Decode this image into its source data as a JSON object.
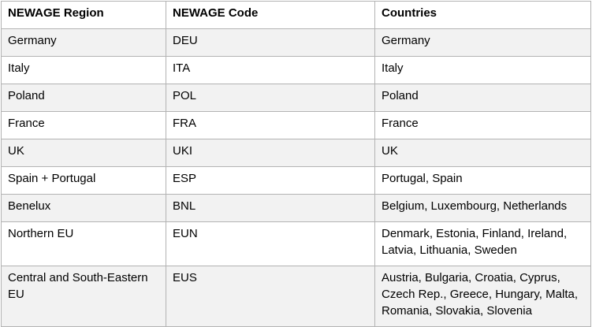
{
  "table": {
    "headers": [
      "NEWAGE Region",
      "NEWAGE Code",
      "Countries"
    ],
    "rows": [
      {
        "region": "Germany",
        "code": "DEU",
        "countries": "Germany"
      },
      {
        "region": "Italy",
        "code": "ITA",
        "countries": "Italy"
      },
      {
        "region": "Poland",
        "code": "POL",
        "countries": "Poland"
      },
      {
        "region": "France",
        "code": "FRA",
        "countries": "France"
      },
      {
        "region": "UK",
        "code": "UKI",
        "countries": "UK"
      },
      {
        "region": "Spain + Portugal",
        "code": "ESP",
        "countries": "Portugal, Spain"
      },
      {
        "region": "Benelux",
        "code": "BNL",
        "countries": "Belgium, Luxembourg, Netherlands"
      },
      {
        "region": "Northern EU",
        "code": "EUN",
        "countries": "Denmark, Estonia, Finland, Ireland, Latvia, Lithuania, Sweden"
      },
      {
        "region": "Central and South-Eastern EU",
        "code": "EUS",
        "countries": "Austria, Bulgaria, Croatia, Cyprus, Czech Rep., Greece, Hungary, Malta, Romania, Slovakia, Slovenia"
      }
    ]
  },
  "colors": {
    "border": "#b3b3b3",
    "shaded_row": "#f2f2f2"
  }
}
